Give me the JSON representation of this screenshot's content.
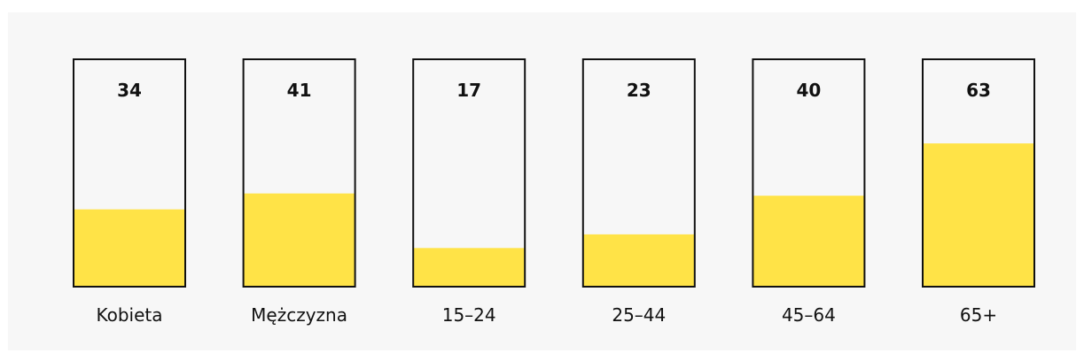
{
  "chart_data": {
    "type": "bar",
    "categories": [
      "Kobieta",
      "Mężczyzna",
      "15–24",
      "25–44",
      "45–64",
      "65+"
    ],
    "values": [
      34,
      41,
      17,
      23,
      40,
      63
    ],
    "ylim": [
      0,
      100
    ],
    "value_labels": [
      "34",
      "41",
      "17",
      "23",
      "40",
      "63"
    ],
    "bar_color": "#ffe347",
    "frame_color": "#111111",
    "background": "#f7f7f7",
    "grid": false,
    "legend": "none"
  }
}
